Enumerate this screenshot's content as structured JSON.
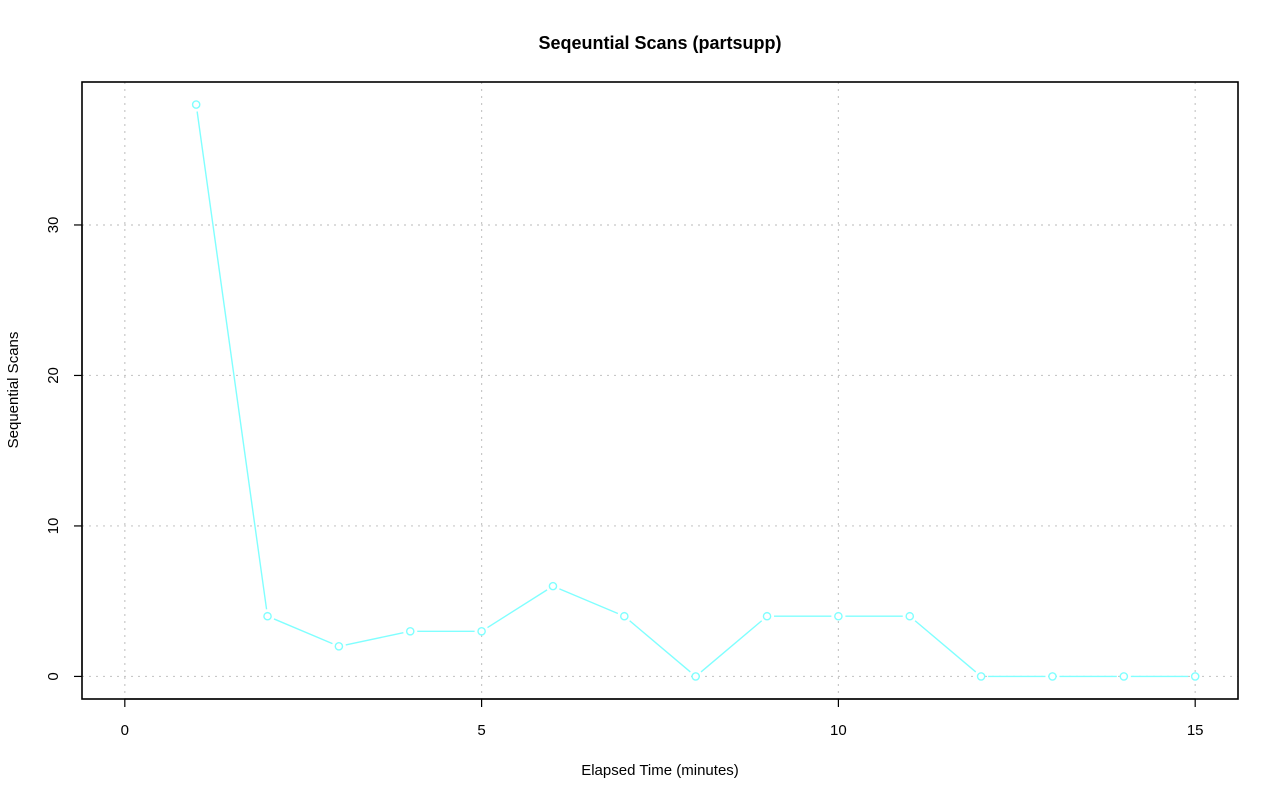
{
  "chart_data": {
    "type": "line",
    "title": "Seqeuntial Scans (partsupp)",
    "xlabel": "Elapsed Time (minutes)",
    "ylabel": "Sequential Scans",
    "xlim": [
      -0.6,
      15.6
    ],
    "ylim": [
      -1.5,
      39.5
    ],
    "x_ticks": [
      0,
      5,
      10,
      15
    ],
    "y_ticks": [
      0,
      10,
      20,
      30
    ],
    "grid": true,
    "series": [
      {
        "color": "#80ffff",
        "x": [
          1,
          2,
          3,
          4,
          5,
          6,
          7,
          8,
          9,
          10,
          11,
          12,
          13,
          14,
          15
        ],
        "values": [
          38,
          4,
          2,
          3,
          3,
          6,
          4,
          0,
          4,
          4,
          4,
          0,
          0,
          0,
          0
        ]
      }
    ]
  }
}
